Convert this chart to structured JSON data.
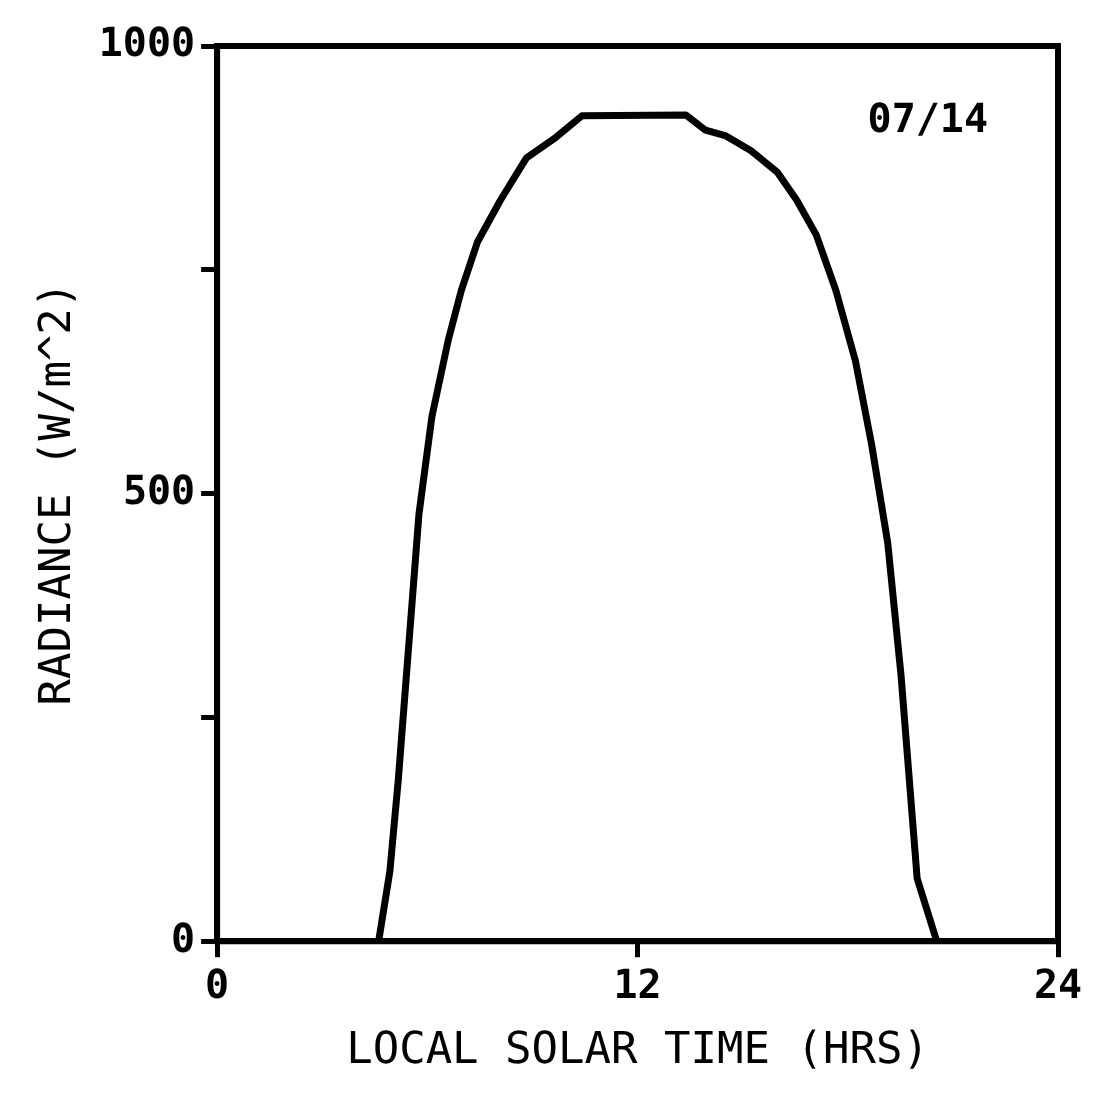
{
  "chart_data": {
    "type": "line",
    "xlabel": "LOCAL SOLAR TIME (HRS)",
    "ylabel": "RADIANCE (W/m^2)",
    "annotations": [
      "07/14"
    ],
    "series": [
      {
        "color": "#000000",
        "x": [
          4.61,
          4.93,
          5.17,
          5.48,
          5.76,
          6.13,
          6.6,
          6.97,
          7.43,
          8.09,
          8.83,
          9.67,
          10.41,
          13.38,
          13.94,
          14.5,
          15.24,
          15.99,
          16.54,
          17.1,
          17.66,
          18.22,
          18.68,
          19.14,
          19.52,
          19.98,
          20.54
        ],
        "values": [
          0,
          78,
          180,
          336,
          477,
          586,
          672,
          727,
          781,
          828,
          875,
          898,
          922,
          923,
          906,
          900,
          883,
          859,
          828,
          789,
          727,
          648,
          555,
          445,
          297,
          70,
          0
        ]
      }
    ],
    "xlim": [
      0,
      24
    ],
    "xticks": [
      0,
      12,
      24
    ],
    "ylim": [
      0,
      1000
    ],
    "yticks": [
      0,
      {
        "value": 250,
        "label": null
      },
      500,
      {
        "value": 750,
        "label": null
      },
      1000
    ],
    "grid": false,
    "legend": false,
    "marker": "none",
    "line_style": "solid"
  }
}
